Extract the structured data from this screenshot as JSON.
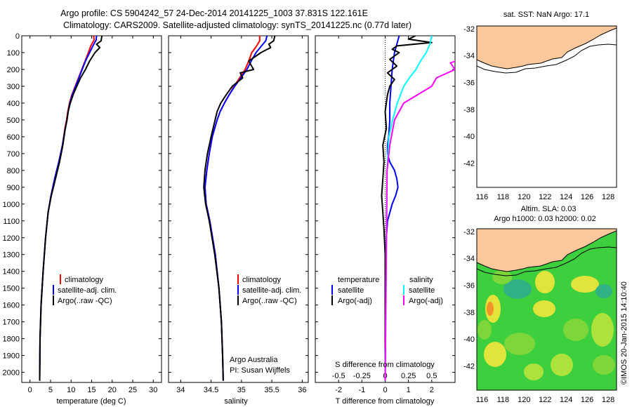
{
  "header": {
    "line1": "Argo profile: CS 5904242_57 24-Dec-2014 20141225_1003 37.831S 122.161E",
    "line2": "Climatology: CARS2009. Satellite-adjusted climatology: synTS_20141225.nc (0.77d later)"
  },
  "colors": {
    "climatology": "#ff0000",
    "satellite": "#0000ff",
    "argo": "#000000",
    "salinity_satellite": "#00ffff",
    "salinity_argo": "#ff00ff",
    "land": "#fac89b",
    "marker": "#6fd13c"
  },
  "chart_data": [
    {
      "id": "temperature",
      "type": "line",
      "xlabel": "temperature (deg C)",
      "ylabel": "",
      "xlim": [
        -2,
        32
      ],
      "ylim": [
        2060,
        0
      ],
      "x_ticks": [
        "0",
        "5",
        "10",
        "15",
        "20",
        "25",
        "30"
      ],
      "y_ticks": [
        "0",
        "100",
        "200",
        "300",
        "400",
        "500",
        "600",
        "700",
        "800",
        "900",
        "1000",
        "1100",
        "1200",
        "1300",
        "1400",
        "1500",
        "1600",
        "1700",
        "1800",
        "1900",
        "2000"
      ],
      "legend": [
        "climatology",
        "satellite-adj. clim.",
        "Argo(..raw -QC)"
      ],
      "series": [
        {
          "name": "climatology",
          "x": [
            15.5,
            15.6,
            14.8,
            14.2,
            13.4,
            12.6,
            11.8,
            11,
            10.2,
            9.6,
            9.2,
            8.9,
            8.5,
            7.9,
            7,
            6,
            5.1,
            4.4,
            3.8,
            3.2,
            2.7,
            2.45,
            2.35
          ],
          "y": [
            0,
            25,
            60,
            100,
            150,
            200,
            250,
            300,
            350,
            400,
            450,
            500,
            550,
            650,
            750,
            850,
            950,
            1050,
            1200,
            1400,
            1600,
            1800,
            2050
          ]
        },
        {
          "name": "satellite-adj. clim.",
          "x": [
            16.2,
            16.1,
            15.3,
            14.5,
            13.5,
            12.7,
            11.9,
            11.1,
            10.3,
            9.7,
            9.3,
            9,
            8.6,
            7.9,
            7,
            6,
            5.1,
            4.4,
            3.8,
            3.2,
            2.7,
            2.45,
            2.35
          ],
          "y": [
            0,
            25,
            60,
            100,
            150,
            200,
            250,
            300,
            350,
            400,
            450,
            500,
            550,
            650,
            750,
            850,
            950,
            1050,
            1200,
            1400,
            1600,
            1800,
            2050
          ]
        },
        {
          "name": "Argo(..raw -QC)",
          "x": [
            17.5,
            17.3,
            16.2,
            17,
            15.8,
            14.5,
            13.5,
            12.3,
            11.4,
            10.5,
            9.8,
            9.3,
            9,
            8.6,
            8,
            7.2,
            6.2,
            5.2,
            4.4,
            3.8,
            3.2,
            2.7,
            2.45,
            2.35
          ],
          "y": [
            0,
            30,
            50,
            70,
            100,
            150,
            200,
            250,
            300,
            350,
            400,
            450,
            500,
            550,
            650,
            750,
            850,
            950,
            1050,
            1200,
            1400,
            1600,
            1800,
            2050
          ]
        }
      ]
    },
    {
      "id": "salinity",
      "type": "line",
      "xlabel": "salinity",
      "ylabel": "",
      "xlim": [
        33.8,
        36.1
      ],
      "ylim": [
        2060,
        0
      ],
      "x_ticks": [
        "34",
        "34.5",
        "35",
        "35.5",
        "36"
      ],
      "legend": [
        "climatology",
        "satellite-adj. clim.",
        "Argo(..raw -QC)"
      ],
      "annotation": [
        "Argo Australia",
        "PI: Susan Wijffels"
      ],
      "series": [
        {
          "name": "climatology",
          "x": [
            35.3,
            35.3,
            35.25,
            35.17,
            35.12,
            35.06,
            34.97,
            34.88,
            34.8,
            34.72,
            34.65,
            34.6,
            34.52,
            34.47,
            34.43,
            34.4,
            34.42,
            34.48,
            34.57,
            34.63,
            34.67,
            34.69,
            34.7
          ],
          "y": [
            0,
            30,
            60,
            100,
            150,
            200,
            250,
            300,
            350,
            400,
            450,
            500,
            600,
            700,
            800,
            900,
            1000,
            1100,
            1300,
            1500,
            1700,
            1900,
            2050
          ]
        },
        {
          "name": "satellite-adj. clim.",
          "x": [
            35.42,
            35.4,
            35.33,
            35.24,
            35.16,
            35.09,
            34.99,
            34.89,
            34.8,
            34.72,
            34.65,
            34.6,
            34.52,
            34.47,
            34.43,
            34.4,
            34.42,
            34.48,
            34.57,
            34.63,
            34.67,
            34.69,
            34.7
          ],
          "y": [
            0,
            30,
            60,
            100,
            150,
            200,
            250,
            300,
            350,
            400,
            450,
            500,
            600,
            700,
            800,
            900,
            1000,
            1100,
            1300,
            1500,
            1700,
            1900,
            2050
          ]
        },
        {
          "name": "Argo(..raw -QC)",
          "x": [
            35.55,
            35.53,
            35.45,
            35.48,
            35.32,
            35.12,
            35.2,
            34.98,
            35.02,
            34.85,
            34.75,
            34.66,
            34.6,
            34.5,
            34.44,
            34.4,
            34.38,
            34.41,
            34.47,
            34.56,
            34.63,
            34.67,
            34.69,
            34.7
          ],
          "y": [
            0,
            30,
            50,
            70,
            100,
            150,
            200,
            220,
            250,
            300,
            350,
            400,
            450,
            600,
            700,
            800,
            900,
            1000,
            1100,
            1300,
            1500,
            1700,
            1900,
            2050
          ]
        }
      ]
    },
    {
      "id": "difference",
      "type": "line",
      "xlabel": "T difference from climatology",
      "x2label": "S difference from climatology",
      "xlim": [
        -3,
        3
      ],
      "ylim": [
        2060,
        0
      ],
      "x_ticks": [
        "-2",
        "-1",
        "0",
        "1",
        "2"
      ],
      "x2_ticks": [
        "-0.5",
        "-0.25",
        "0",
        "0.25",
        "0.5"
      ],
      "legend_headers": [
        "temperature",
        "salinity"
      ],
      "legend": [
        "satellite",
        "Argo(-adj)",
        "satellite",
        "Argo(-adj)"
      ],
      "series": [
        {
          "name": "temperature satellite",
          "x": [
            0.6,
            0.5,
            0.4,
            0.3,
            0.25,
            0.2,
            0.2,
            0.15,
            0.1,
            0.1,
            0.2,
            0.4,
            0.5,
            0.55,
            0.45,
            0.3,
            0.1,
            0.05,
            0.02,
            0
          ],
          "y": [
            0,
            50,
            100,
            200,
            300,
            400,
            500,
            600,
            650,
            700,
            750,
            800,
            850,
            900,
            950,
            1000,
            1100,
            1200,
            1400,
            2050
          ]
        },
        {
          "name": "temperature Argo(-adj)",
          "x": [
            1.3,
            1.0,
            1.5,
            2.0,
            0.5,
            0.3,
            0.6,
            0.2,
            0.5,
            0.1,
            0.4,
            0.2,
            0.1,
            0,
            0.05,
            -0.1,
            -0.05,
            -0.1,
            -0.15,
            -0.1,
            -0.05,
            0,
            0
          ],
          "y": [
            0,
            20,
            30,
            40,
            60,
            80,
            100,
            140,
            180,
            220,
            260,
            300,
            350,
            450,
            550,
            650,
            750,
            850,
            950,
            1050,
            1150,
            1300,
            2050
          ]
        },
        {
          "name": "salinity satellite",
          "x": [
            0.5,
            0.48,
            0.44,
            0.38,
            0.33,
            0.26,
            0.2,
            0.13,
            0.08,
            0.04,
            0.02,
            0
          ],
          "y": [
            0,
            50,
            100,
            150,
            200,
            250,
            300,
            400,
            500,
            600,
            800,
            2050
          ]
        },
        {
          "name": "salinity Argo(-adj)",
          "x": [
            1.0,
            1.2,
            0.9,
            0.8,
            0.95,
            0.7,
            0.75,
            0.55,
            0.5,
            0.2,
            0.1,
            0.05,
            0.02,
            0
          ],
          "y": [
            0,
            20,
            50,
            80,
            120,
            160,
            200,
            250,
            300,
            400,
            500,
            650,
            800,
            2050
          ]
        }
      ]
    },
    {
      "id": "sst_map",
      "type": "heatmap",
      "title": "sat. SST: NaN Argo: 17.1",
      "xlim": [
        115.5,
        128.8
      ],
      "ylim": [
        -43.8,
        -31.8
      ],
      "x_ticks": [
        "116",
        "118",
        "120",
        "122",
        "124",
        "126",
        "128"
      ],
      "y_ticks": [
        "-32",
        "-34",
        "-36",
        "-38",
        "-40",
        "-42"
      ],
      "float_position": {
        "lon": 122.161,
        "lat": -37.831
      }
    },
    {
      "id": "sla_map",
      "type": "heatmap",
      "title": "Altim. SLA: 0.03",
      "subtitle": "Argo h1000: 0.03 h2000: 0.02",
      "xlim": [
        115.5,
        128.8
      ],
      "ylim": [
        -43.8,
        -31.8
      ],
      "x_ticks": [
        "116",
        "118",
        "120",
        "122",
        "124",
        "126",
        "128"
      ],
      "y_ticks": [
        "-32",
        "-34",
        "-36",
        "-38",
        "-40",
        "-42"
      ],
      "float_position": {
        "lon": 122.161,
        "lat": -37.831
      }
    }
  ],
  "footer": {
    "credit": "©IMOS 20-Jan-2015 14:10:40"
  }
}
